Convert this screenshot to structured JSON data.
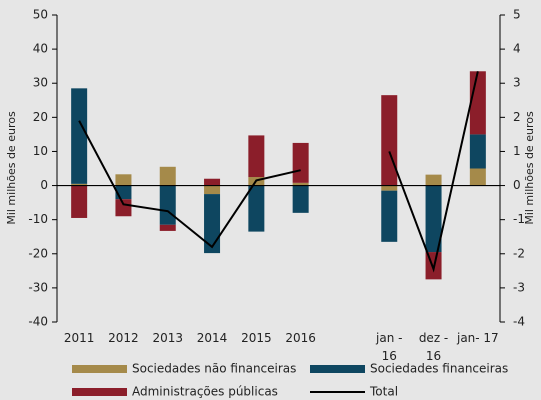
{
  "chart_data": {
    "type": "bar",
    "categories": [
      "2011",
      "2012",
      "2013",
      "2014",
      "2015",
      "2016",
      null,
      "jan -\n16",
      "dez -\n16",
      "jan- 17"
    ],
    "series": [
      {
        "name": "Sociedades não financeiras",
        "color": "#a58a4a",
        "values": [
          0.5,
          3.3,
          5.5,
          -2.5,
          2.5,
          0.8,
          null,
          -1.5,
          3.2,
          5
        ]
      },
      {
        "name": "Sociedades financeiras",
        "color": "#0e4660",
        "values": [
          28,
          -4,
          -11.5,
          -17.3,
          -13.5,
          -8,
          null,
          -15,
          -19.5,
          10
        ]
      },
      {
        "name": "Administrações públicas",
        "color": "#8b1e2a",
        "values": [
          -9.5,
          -5,
          -1.8,
          2,
          12.2,
          11.7,
          null,
          26.5,
          -8,
          18.5
        ]
      },
      {
        "name": "Total",
        "type": "line",
        "axis": "y2",
        "color": "#000000",
        "values": [
          1.9,
          -0.55,
          -0.75,
          -1.8,
          0.15,
          0.45,
          null,
          1.0,
          -2.45,
          3.35
        ]
      }
    ],
    "ylabel": "Mil milhões de euros",
    "y2label": "Mil milhões de euros",
    "ylim": [
      -40,
      50
    ],
    "yticks": [
      -40,
      -30,
      -20,
      -10,
      0,
      10,
      20,
      30,
      40,
      50
    ],
    "y2lim": [
      -4,
      5
    ],
    "y2ticks": [
      -4,
      -3,
      -2,
      -1,
      0,
      1,
      2,
      3,
      4,
      5
    ]
  }
}
